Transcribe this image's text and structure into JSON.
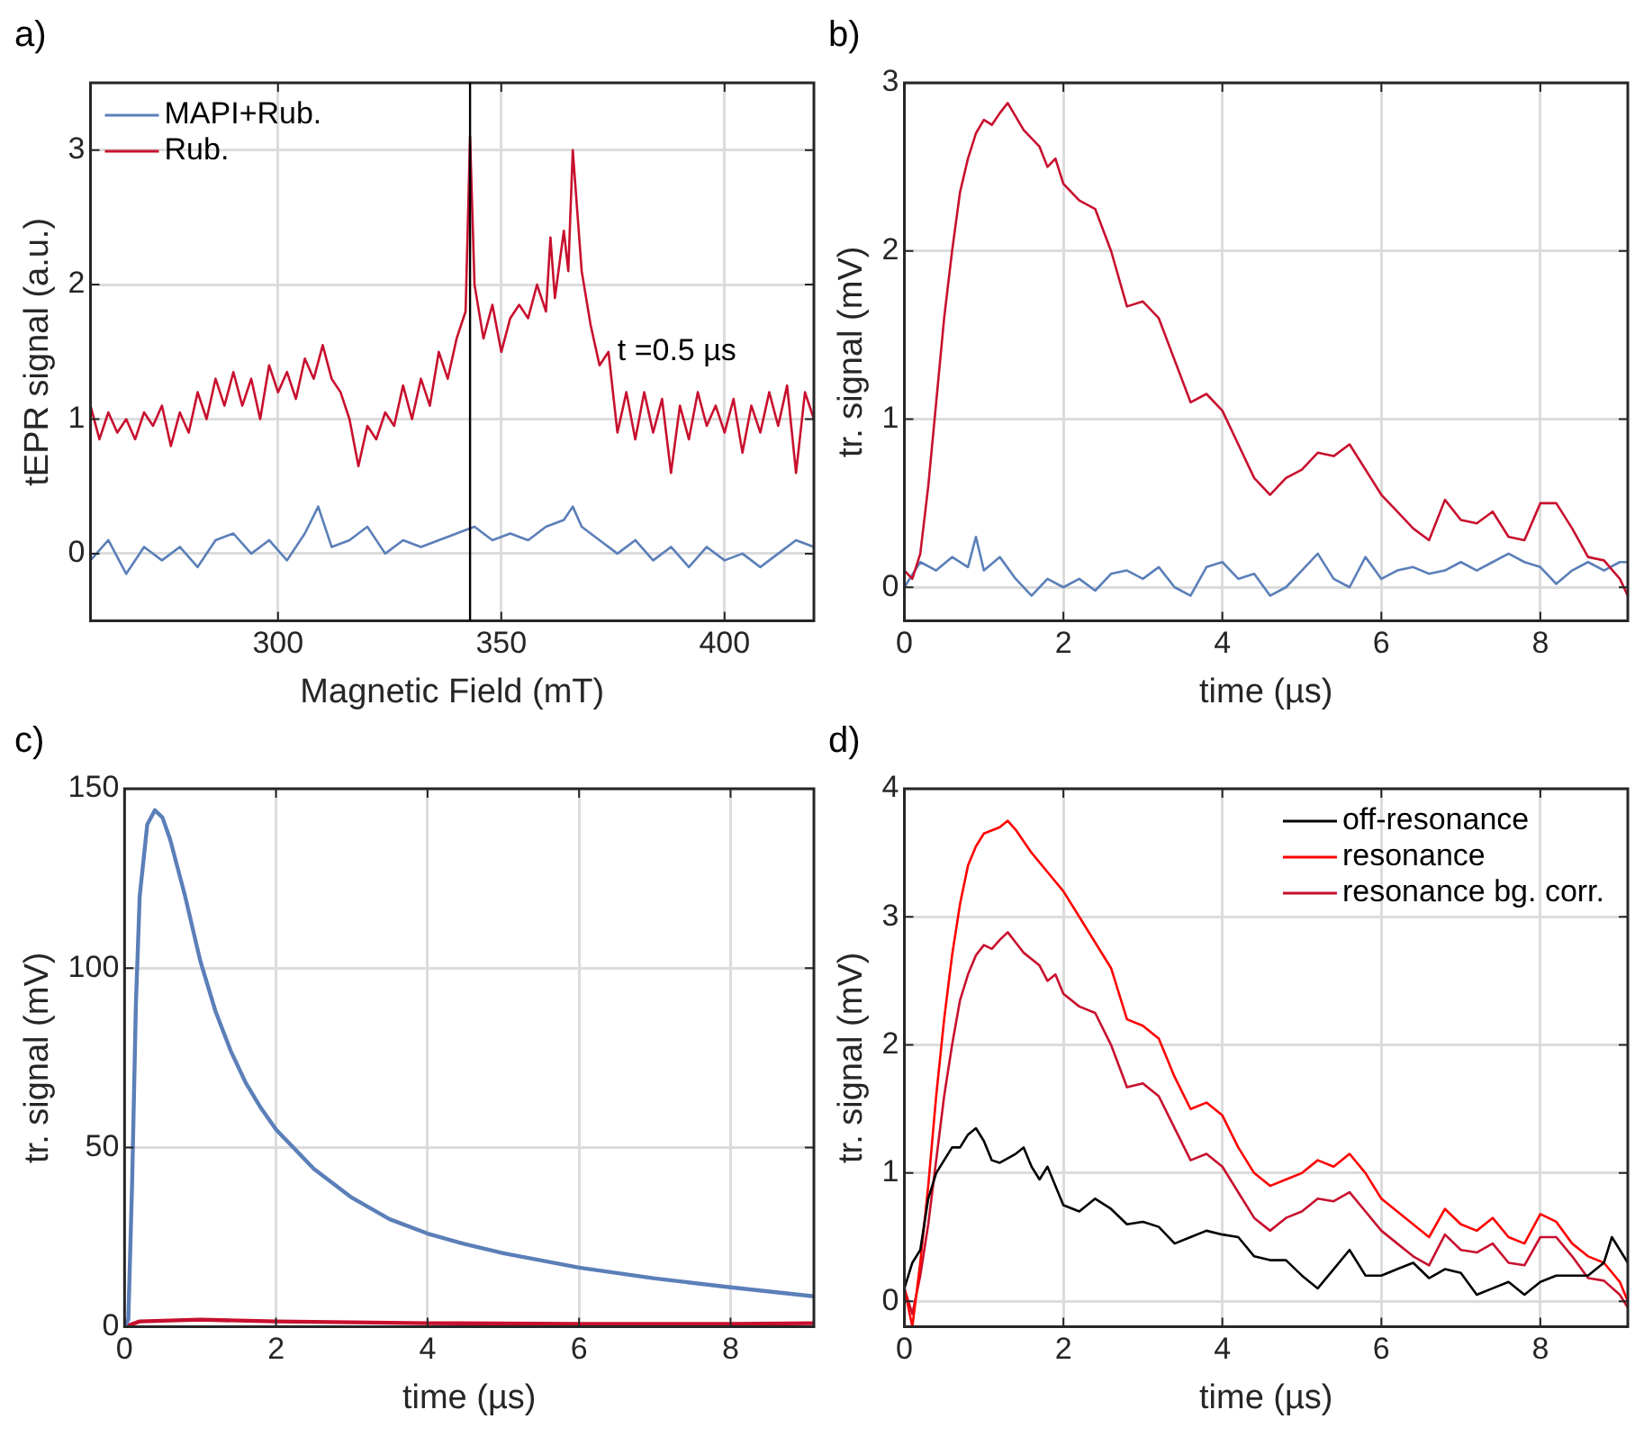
{
  "chart_data": [
    {
      "type": "line",
      "title": "a)",
      "xlabel": "Magnetic Field (mT)",
      "ylabel": "tEPR signal (a.u.)",
      "xlim": [
        258,
        420
      ],
      "xticks": [
        300,
        350,
        400
      ],
      "ylim": [
        -0.5,
        3.5
      ],
      "yticks": [
        0,
        1,
        2,
        3
      ],
      "grid": true,
      "legend": "top left",
      "ref_lines": [
        {
          "axis": "x",
          "value": 343,
          "color": "#000000"
        }
      ],
      "annotations": [
        {
          "text": "t =0.5 µs",
          "x": 376,
          "y": 1.5
        }
      ],
      "series": [
        {
          "name": "MAPI+Rub.",
          "color": "#5b7fb8",
          "x": [
            258,
            262,
            266,
            270,
            274,
            278,
            282,
            286,
            290,
            294,
            298,
            302,
            306,
            309,
            312,
            316,
            320,
            324,
            328,
            332,
            336,
            340,
            344,
            348,
            352,
            356,
            360,
            364,
            366,
            368,
            372,
            376,
            380,
            384,
            388,
            392,
            396,
            400,
            404,
            408,
            412,
            416,
            420
          ],
          "values": [
            -0.05,
            0.1,
            -0.15,
            0.05,
            -0.05,
            0.05,
            -0.1,
            0.1,
            0.15,
            0.0,
            0.1,
            -0.05,
            0.15,
            0.35,
            0.05,
            0.1,
            0.2,
            0.0,
            0.1,
            0.05,
            0.1,
            0.15,
            0.2,
            0.1,
            0.15,
            0.1,
            0.2,
            0.25,
            0.35,
            0.2,
            0.1,
            0.0,
            0.1,
            -0.05,
            0.05,
            -0.1,
            0.05,
            -0.05,
            0.0,
            -0.1,
            0.0,
            0.1,
            0.05
          ]
        },
        {
          "name": "Rub.",
          "color": "#c8102e",
          "x": [
            258,
            260,
            262,
            264,
            266,
            268,
            270,
            272,
            274,
            276,
            278,
            280,
            282,
            284,
            286,
            288,
            290,
            292,
            294,
            296,
            298,
            300,
            302,
            304,
            306,
            308,
            310,
            312,
            314,
            316,
            318,
            320,
            322,
            324,
            326,
            328,
            330,
            332,
            334,
            336,
            338,
            340,
            342,
            343,
            344,
            346,
            348,
            350,
            352,
            354,
            356,
            358,
            360,
            361,
            362,
            364,
            365,
            366,
            368,
            370,
            372,
            374,
            376,
            378,
            380,
            382,
            384,
            386,
            388,
            390,
            392,
            394,
            396,
            398,
            400,
            402,
            404,
            406,
            408,
            410,
            412,
            414,
            416,
            418,
            420
          ],
          "values": [
            1.1,
            0.85,
            1.05,
            0.9,
            1.0,
            0.85,
            1.05,
            0.95,
            1.1,
            0.8,
            1.05,
            0.9,
            1.2,
            1.0,
            1.3,
            1.1,
            1.35,
            1.1,
            1.3,
            1.0,
            1.4,
            1.2,
            1.35,
            1.15,
            1.45,
            1.3,
            1.55,
            1.3,
            1.2,
            1.0,
            0.65,
            0.95,
            0.85,
            1.05,
            0.95,
            1.25,
            1.0,
            1.3,
            1.1,
            1.5,
            1.3,
            1.6,
            1.8,
            3.1,
            2.0,
            1.6,
            1.85,
            1.5,
            1.75,
            1.85,
            1.75,
            2.0,
            1.8,
            2.35,
            1.9,
            2.4,
            2.1,
            3.0,
            2.1,
            1.7,
            1.4,
            1.5,
            0.9,
            1.2,
            0.85,
            1.2,
            0.9,
            1.15,
            0.6,
            1.1,
            0.85,
            1.2,
            0.95,
            1.1,
            0.9,
            1.15,
            0.75,
            1.1,
            0.9,
            1.2,
            0.95,
            1.25,
            0.6,
            1.2,
            1.0
          ]
        }
      ]
    },
    {
      "type": "line",
      "title": "b)",
      "xlabel": "time (µs)",
      "ylabel": "tr. signal (mV)",
      "xlim": [
        0,
        9.1
      ],
      "xticks": [
        0,
        2,
        4,
        6,
        8
      ],
      "ylim": [
        -0.2,
        3
      ],
      "yticks": [
        0,
        1,
        2,
        3
      ],
      "grid": true,
      "series": [
        {
          "color": "#c8102e",
          "x": [
            0,
            0.1,
            0.2,
            0.3,
            0.4,
            0.5,
            0.6,
            0.7,
            0.8,
            0.9,
            1.0,
            1.1,
            1.2,
            1.3,
            1.4,
            1.5,
            1.7,
            1.8,
            1.9,
            2.0,
            2.2,
            2.4,
            2.6,
            2.8,
            3.0,
            3.2,
            3.4,
            3.6,
            3.8,
            4.0,
            4.2,
            4.4,
            4.6,
            4.8,
            5.0,
            5.2,
            5.4,
            5.6,
            5.8,
            6.0,
            6.2,
            6.4,
            6.6,
            6.8,
            7.0,
            7.2,
            7.4,
            7.6,
            7.8,
            8.0,
            8.2,
            8.4,
            8.6,
            8.8,
            9.0,
            9.1
          ],
          "values": [
            0.1,
            0.05,
            0.2,
            0.6,
            1.1,
            1.6,
            2.0,
            2.35,
            2.55,
            2.7,
            2.78,
            2.75,
            2.82,
            2.88,
            2.8,
            2.72,
            2.62,
            2.5,
            2.55,
            2.4,
            2.3,
            2.25,
            2.0,
            1.67,
            1.7,
            1.6,
            1.35,
            1.1,
            1.15,
            1.05,
            0.85,
            0.65,
            0.55,
            0.65,
            0.7,
            0.8,
            0.78,
            0.85,
            0.7,
            0.55,
            0.45,
            0.35,
            0.28,
            0.52,
            0.4,
            0.38,
            0.45,
            0.3,
            0.28,
            0.5,
            0.5,
            0.35,
            0.18,
            0.16,
            0.05,
            -0.05
          ]
        },
        {
          "color": "#5b7fb8",
          "x": [
            0,
            0.2,
            0.4,
            0.6,
            0.8,
            0.9,
            1.0,
            1.2,
            1.4,
            1.6,
            1.8,
            2.0,
            2.2,
            2.4,
            2.6,
            2.8,
            3.0,
            3.2,
            3.4,
            3.6,
            3.8,
            4.0,
            4.2,
            4.4,
            4.6,
            4.8,
            5.0,
            5.2,
            5.4,
            5.6,
            5.8,
            6.0,
            6.2,
            6.4,
            6.6,
            6.8,
            7.0,
            7.2,
            7.4,
            7.6,
            7.8,
            8.0,
            8.2,
            8.4,
            8.6,
            8.8,
            9.0,
            9.1
          ],
          "values": [
            0.0,
            0.15,
            0.1,
            0.18,
            0.12,
            0.3,
            0.1,
            0.18,
            0.05,
            -0.05,
            0.05,
            0.0,
            0.05,
            -0.02,
            0.08,
            0.1,
            0.05,
            0.12,
            0.0,
            -0.05,
            0.12,
            0.15,
            0.05,
            0.08,
            -0.05,
            0.0,
            0.1,
            0.2,
            0.05,
            0.0,
            0.18,
            0.05,
            0.1,
            0.12,
            0.08,
            0.1,
            0.15,
            0.1,
            0.15,
            0.2,
            0.15,
            0.12,
            0.02,
            0.1,
            0.15,
            0.1,
            0.15,
            0.15
          ]
        }
      ]
    },
    {
      "type": "line",
      "title": "c)",
      "xlabel": "time (µs)",
      "ylabel": "tr. signal (mV)",
      "xlim": [
        0,
        9.1
      ],
      "xticks": [
        0,
        2,
        4,
        6,
        8
      ],
      "ylim": [
        0,
        150
      ],
      "yticks": [
        0,
        50,
        100,
        150
      ],
      "grid": true,
      "series": [
        {
          "color": "#5b7fb8",
          "x": [
            0,
            0.05,
            0.1,
            0.15,
            0.2,
            0.3,
            0.4,
            0.5,
            0.6,
            0.8,
            1.0,
            1.2,
            1.4,
            1.6,
            1.8,
            2.0,
            2.5,
            3.0,
            3.5,
            4.0,
            4.5,
            5.0,
            6.0,
            7.0,
            8.0,
            9.1
          ],
          "values": [
            0,
            2,
            40,
            90,
            120,
            140,
            144,
            142,
            136,
            120,
            102,
            88,
            77,
            68,
            61,
            55,
            44,
            36,
            30,
            26,
            23,
            20.5,
            16.5,
            13.5,
            11,
            8.5
          ]
        },
        {
          "color": "#c8102e",
          "x": [
            0,
            0.2,
            1,
            2,
            4,
            6,
            8,
            9.1
          ],
          "values": [
            0,
            1.5,
            2,
            1.5,
            1,
            0.8,
            0.8,
            1
          ]
        }
      ]
    },
    {
      "type": "line",
      "title": "d)",
      "xlabel": "time (µs)",
      "ylabel": "tr. signal (mV)",
      "xlim": [
        0,
        9.1
      ],
      "xticks": [
        0,
        2,
        4,
        6,
        8
      ],
      "ylim": [
        -0.2,
        4
      ],
      "yticks": [
        0,
        1,
        2,
        3,
        4
      ],
      "grid": true,
      "legend": "top right",
      "series": [
        {
          "name": "off-resonance",
          "color": "#000000",
          "x": [
            0,
            0.1,
            0.2,
            0.3,
            0.4,
            0.5,
            0.6,
            0.7,
            0.8,
            0.9,
            1.0,
            1.1,
            1.2,
            1.4,
            1.5,
            1.6,
            1.7,
            1.8,
            2.0,
            2.2,
            2.4,
            2.6,
            2.8,
            3.0,
            3.2,
            3.4,
            3.6,
            3.8,
            4.0,
            4.2,
            4.4,
            4.6,
            4.8,
            5.0,
            5.2,
            5.4,
            5.6,
            5.8,
            6.0,
            6.2,
            6.4,
            6.6,
            6.8,
            7.0,
            7.2,
            7.4,
            7.6,
            7.8,
            8.0,
            8.2,
            8.4,
            8.6,
            8.8,
            8.9,
            9.1
          ],
          "values": [
            0.1,
            0.3,
            0.4,
            0.8,
            1.0,
            1.1,
            1.2,
            1.2,
            1.3,
            1.35,
            1.25,
            1.1,
            1.08,
            1.15,
            1.2,
            1.05,
            0.95,
            1.05,
            0.75,
            0.7,
            0.8,
            0.72,
            0.6,
            0.62,
            0.58,
            0.45,
            0.5,
            0.55,
            0.52,
            0.5,
            0.35,
            0.32,
            0.32,
            0.2,
            0.1,
            0.25,
            0.4,
            0.2,
            0.2,
            0.25,
            0.3,
            0.18,
            0.25,
            0.22,
            0.05,
            0.1,
            0.15,
            0.05,
            0.15,
            0.2,
            0.2,
            0.2,
            0.3,
            0.5,
            0.3
          ]
        },
        {
          "name": "resonance",
          "color": "#ff0000",
          "x": [
            0,
            0.1,
            0.2,
            0.3,
            0.4,
            0.5,
            0.6,
            0.7,
            0.8,
            0.9,
            1.0,
            1.2,
            1.3,
            1.4,
            1.6,
            1.8,
            2.0,
            2.2,
            2.4,
            2.6,
            2.8,
            3.0,
            3.2,
            3.4,
            3.6,
            3.8,
            4.0,
            4.2,
            4.4,
            4.6,
            4.8,
            5.0,
            5.2,
            5.4,
            5.6,
            5.8,
            6.0,
            6.2,
            6.4,
            6.6,
            6.8,
            7.0,
            7.2,
            7.4,
            7.6,
            7.8,
            8.0,
            8.2,
            8.4,
            8.6,
            8.8,
            9.0,
            9.1
          ],
          "values": [
            0.1,
            -0.2,
            0.3,
            0.9,
            1.6,
            2.2,
            2.7,
            3.1,
            3.4,
            3.55,
            3.65,
            3.7,
            3.75,
            3.68,
            3.5,
            3.35,
            3.2,
            3.0,
            2.8,
            2.6,
            2.2,
            2.15,
            2.05,
            1.75,
            1.5,
            1.55,
            1.45,
            1.2,
            1.0,
            0.9,
            0.95,
            1.0,
            1.1,
            1.05,
            1.15,
            1.0,
            0.8,
            0.7,
            0.6,
            0.5,
            0.72,
            0.6,
            0.55,
            0.65,
            0.5,
            0.45,
            0.68,
            0.62,
            0.45,
            0.35,
            0.3,
            0.15,
            0.0
          ]
        },
        {
          "name": "resonance bg. corr.",
          "color": "#c8102e",
          "x": [
            0,
            0.1,
            0.2,
            0.3,
            0.4,
            0.5,
            0.6,
            0.7,
            0.8,
            0.9,
            1.0,
            1.1,
            1.2,
            1.3,
            1.4,
            1.5,
            1.7,
            1.8,
            1.9,
            2.0,
            2.2,
            2.4,
            2.6,
            2.8,
            3.0,
            3.2,
            3.4,
            3.6,
            3.8,
            4.0,
            4.2,
            4.4,
            4.6,
            4.8,
            5.0,
            5.2,
            5.4,
            5.6,
            5.8,
            6.0,
            6.2,
            6.4,
            6.6,
            6.8,
            7.0,
            7.2,
            7.4,
            7.6,
            7.8,
            8.0,
            8.2,
            8.4,
            8.6,
            8.8,
            9.0,
            9.1
          ],
          "values": [
            0.1,
            -0.1,
            0.2,
            0.6,
            1.1,
            1.6,
            2.0,
            2.35,
            2.55,
            2.7,
            2.78,
            2.75,
            2.82,
            2.88,
            2.8,
            2.72,
            2.62,
            2.5,
            2.55,
            2.4,
            2.3,
            2.25,
            2.0,
            1.67,
            1.7,
            1.6,
            1.35,
            1.1,
            1.15,
            1.05,
            0.85,
            0.65,
            0.55,
            0.65,
            0.7,
            0.8,
            0.78,
            0.85,
            0.7,
            0.55,
            0.45,
            0.35,
            0.28,
            0.52,
            0.4,
            0.38,
            0.45,
            0.3,
            0.28,
            0.5,
            0.5,
            0.35,
            0.18,
            0.16,
            0.05,
            -0.05
          ]
        }
      ]
    }
  ]
}
